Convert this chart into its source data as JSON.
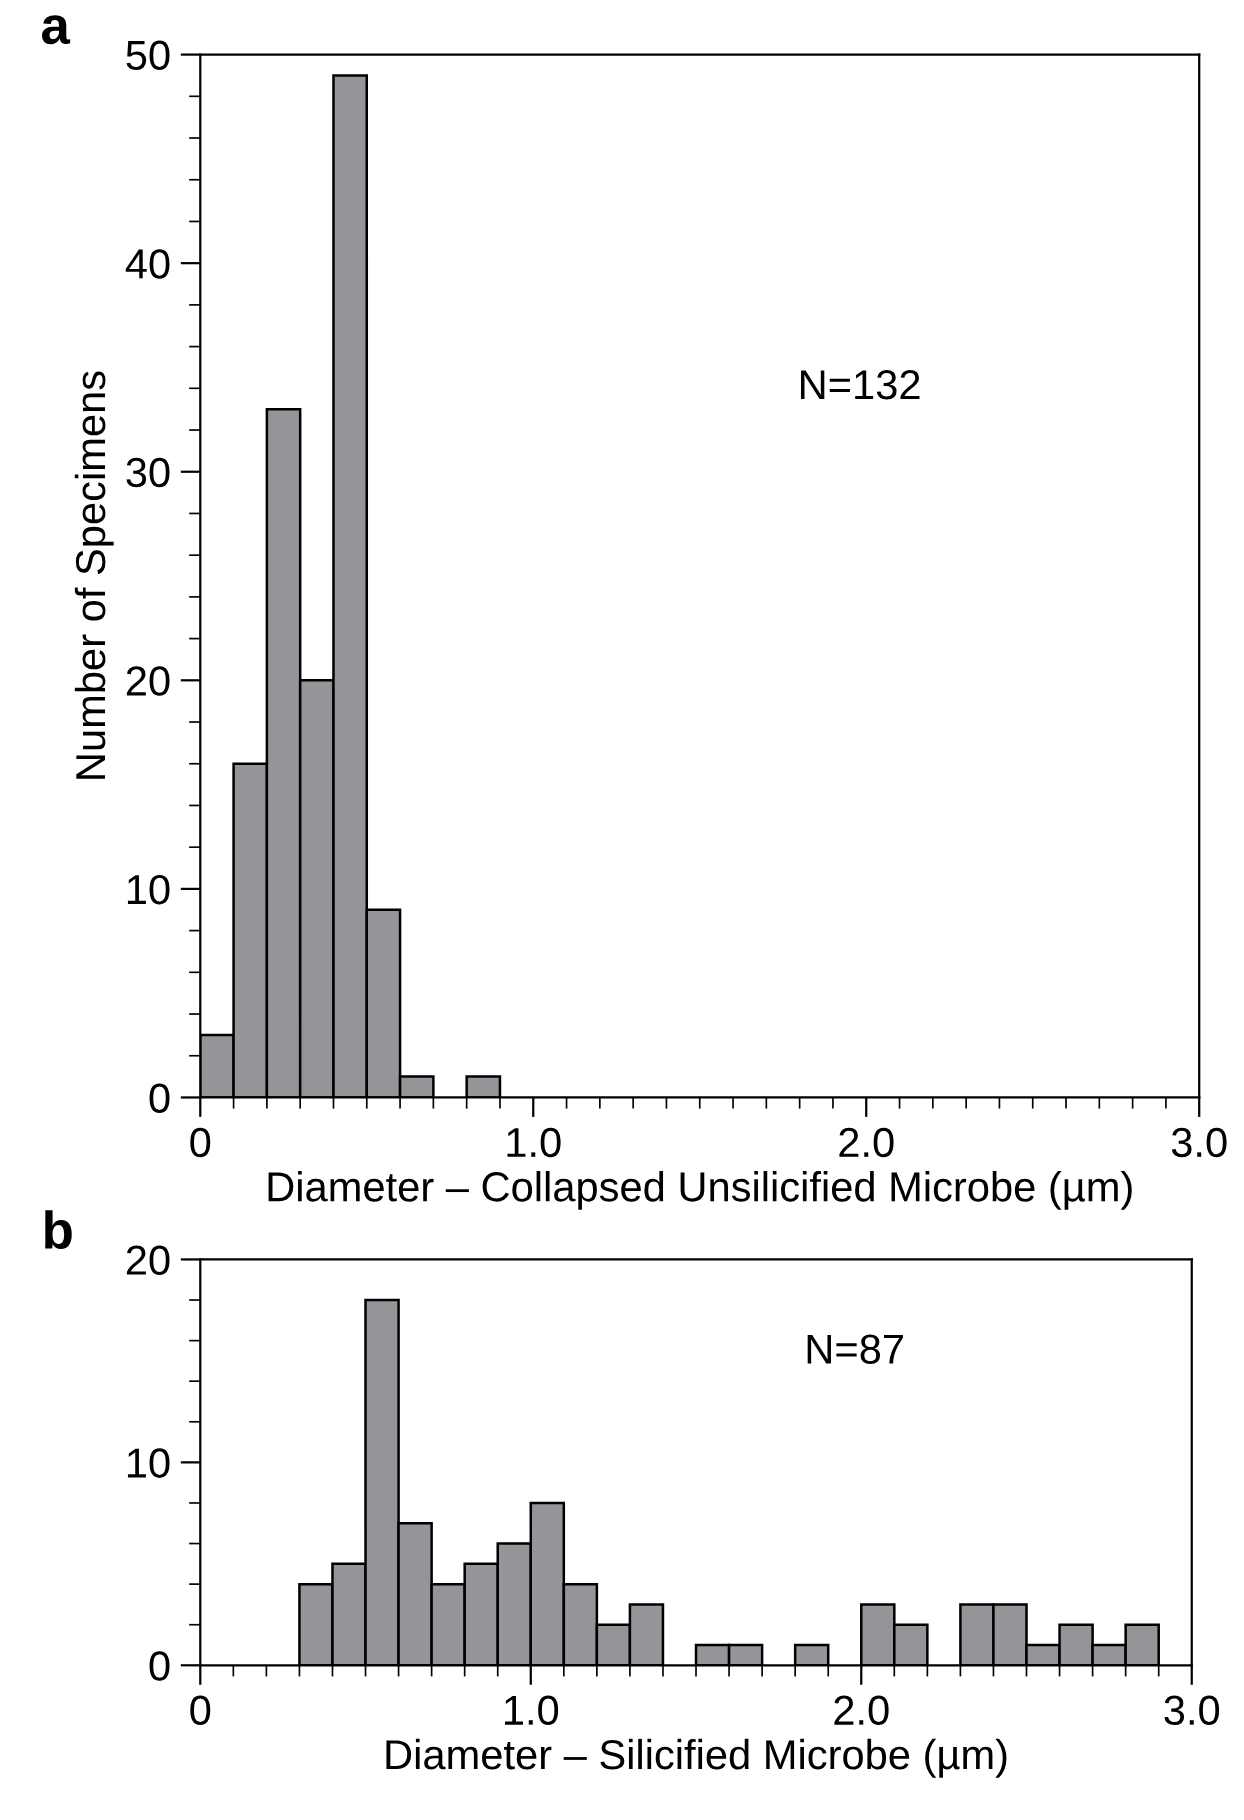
{
  "chart_data": [
    {
      "type": "histogram",
      "xlabel": "Diameter – Collapsed Unsilicified Microbe (µm)",
      "ylabel": "Number of Specimens",
      "annotations": [
        "a",
        "N=132"
      ],
      "bins": [
        0,
        0.1,
        0.2,
        0.3,
        0.4,
        0.5,
        0.6,
        0.7,
        0.8,
        0.9
      ],
      "values": [
        3,
        16,
        33,
        20,
        49,
        9,
        1,
        0,
        1
      ],
      "color": "#939598",
      "grid": false,
      "xlim": [
        0,
        3
      ],
      "ylim": [
        0,
        50
      ],
      "xticks": [
        0,
        {
          "value": 0.1,
          "label": null
        },
        {
          "value": 0.2,
          "label": null
        },
        {
          "value": 0.3,
          "label": null
        },
        {
          "value": 0.4,
          "label": null
        },
        {
          "value": 0.5,
          "label": null
        },
        {
          "value": 0.6,
          "label": null
        },
        {
          "value": 0.7,
          "label": null
        },
        {
          "value": 0.8,
          "label": null
        },
        {
          "value": 0.9,
          "label": null
        },
        {
          "value": 1,
          "label": "1.0"
        },
        {
          "value": 1.1,
          "label": null
        },
        {
          "value": 1.2,
          "label": null
        },
        {
          "value": 1.3,
          "label": null
        },
        {
          "value": 1.4,
          "label": null
        },
        {
          "value": 1.5,
          "label": null
        },
        {
          "value": 1.6,
          "label": null
        },
        {
          "value": 1.7,
          "label": null
        },
        {
          "value": 1.8,
          "label": null
        },
        {
          "value": 1.9,
          "label": null
        },
        {
          "value": 2,
          "label": "2.0"
        },
        {
          "value": 2.1,
          "label": null
        },
        {
          "value": 2.2,
          "label": null
        },
        {
          "value": 2.3,
          "label": null
        },
        {
          "value": 2.4,
          "label": null
        },
        {
          "value": 2.5,
          "label": null
        },
        {
          "value": 2.6,
          "label": null
        },
        {
          "value": 2.7,
          "label": null
        },
        {
          "value": 2.8,
          "label": null
        },
        {
          "value": 2.9,
          "label": null
        },
        {
          "value": 3,
          "label": "3.0"
        }
      ],
      "yticks": [
        0,
        {
          "value": 2,
          "label": null
        },
        {
          "value": 4,
          "label": null
        },
        {
          "value": 6,
          "label": null
        },
        {
          "value": 8,
          "label": null
        },
        10,
        {
          "value": 12,
          "label": null
        },
        {
          "value": 14,
          "label": null
        },
        {
          "value": 16,
          "label": null
        },
        {
          "value": 18,
          "label": null
        },
        20,
        {
          "value": 22,
          "label": null
        },
        {
          "value": 24,
          "label": null
        },
        {
          "value": 26,
          "label": null
        },
        {
          "value": 28,
          "label": null
        },
        30,
        {
          "value": 32,
          "label": null
        },
        {
          "value": 34,
          "label": null
        },
        {
          "value": 36,
          "label": null
        },
        {
          "value": 38,
          "label": null
        },
        40,
        {
          "value": 42,
          "label": null
        },
        {
          "value": 44,
          "label": null
        },
        {
          "value": 46,
          "label": null
        },
        {
          "value": 48,
          "label": null
        },
        50
      ]
    },
    {
      "type": "histogram",
      "xlabel": "Diameter – Silicified Microbe (µm)",
      "annotations": [
        "b",
        "N=87"
      ],
      "bins": [
        0.3,
        0.4,
        0.5,
        0.6,
        0.7,
        0.8,
        0.9,
        1.0,
        1.1,
        1.2,
        1.3,
        1.4,
        1.5,
        1.6,
        1.7,
        1.8,
        1.9,
        2.0,
        2.1,
        2.2,
        2.3,
        2.4,
        2.5,
        2.6,
        2.7,
        2.8,
        2.9
      ],
      "values": [
        4,
        5,
        18,
        7,
        4,
        5,
        6,
        8,
        4,
        2,
        3,
        0,
        1,
        1,
        0,
        1,
        0,
        3,
        2,
        0,
        3,
        3,
        1,
        2,
        1,
        2
      ],
      "color": "#939598",
      "grid": false,
      "xlim": [
        0,
        3
      ],
      "ylim": [
        0,
        20
      ],
      "xticks": [
        0,
        {
          "value": 0.1,
          "label": null
        },
        {
          "value": 0.2,
          "label": null
        },
        {
          "value": 0.3,
          "label": null
        },
        {
          "value": 0.4,
          "label": null
        },
        {
          "value": 0.5,
          "label": null
        },
        {
          "value": 0.6,
          "label": null
        },
        {
          "value": 0.7,
          "label": null
        },
        {
          "value": 0.8,
          "label": null
        },
        {
          "value": 0.9,
          "label": null
        },
        {
          "value": 1,
          "label": "1.0"
        },
        {
          "value": 1.1,
          "label": null
        },
        {
          "value": 1.2,
          "label": null
        },
        {
          "value": 1.3,
          "label": null
        },
        {
          "value": 1.4,
          "label": null
        },
        {
          "value": 1.5,
          "label": null
        },
        {
          "value": 1.6,
          "label": null
        },
        {
          "value": 1.7,
          "label": null
        },
        {
          "value": 1.8,
          "label": null
        },
        {
          "value": 1.9,
          "label": null
        },
        {
          "value": 2,
          "label": "2.0"
        },
        {
          "value": 2.1,
          "label": null
        },
        {
          "value": 2.2,
          "label": null
        },
        {
          "value": 2.3,
          "label": null
        },
        {
          "value": 2.4,
          "label": null
        },
        {
          "value": 2.5,
          "label": null
        },
        {
          "value": 2.6,
          "label": null
        },
        {
          "value": 2.7,
          "label": null
        },
        {
          "value": 2.8,
          "label": null
        },
        {
          "value": 2.9,
          "label": null
        },
        {
          "value": 3,
          "label": "3.0"
        }
      ],
      "yticks": [
        0,
        {
          "value": 2,
          "label": null
        },
        {
          "value": 4,
          "label": null
        },
        {
          "value": 6,
          "label": null
        },
        {
          "value": 8,
          "label": null
        },
        10,
        {
          "value": 12,
          "label": null
        },
        {
          "value": 14,
          "label": null
        },
        {
          "value": 16,
          "label": null
        },
        {
          "value": 18,
          "label": null
        },
        20
      ]
    }
  ]
}
